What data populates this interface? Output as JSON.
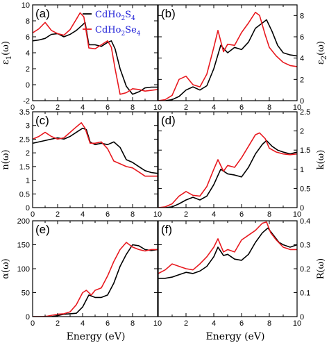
{
  "colors": {
    "s4": "#000000",
    "se4": "#e8191f",
    "legend_text": "#1a1ad6"
  },
  "legend": [
    {
      "prefix": "CdHo",
      "sub1": "2",
      "mid": "S",
      "sub2": "4",
      "series": "s4"
    },
    {
      "prefix": "CdHo",
      "sub1": "2",
      "mid": "Se",
      "sub2": "4",
      "series": "se4"
    }
  ],
  "xlabels": {
    "left": "Energy (eV)",
    "right": "Energy (eV)"
  },
  "chart_data": [
    {
      "panel": "(a)",
      "type": "line",
      "ylabel": "ε₁(ω)",
      "ylabel_main": "ε",
      "ylabel_sub": "1",
      "ylabel_tail": "(ω)",
      "ylabel_side": "left",
      "xlim": [
        0,
        10
      ],
      "ylim": [
        -2,
        10
      ],
      "xticks": [
        0,
        2,
        4,
        6,
        8,
        10
      ],
      "yticks": [
        -2,
        0,
        2,
        4,
        6,
        8,
        10
      ],
      "series": [
        {
          "key": "s4",
          "x": [
            0,
            0.5,
            1,
            1.5,
            2,
            2.5,
            3,
            3.5,
            4,
            4.2,
            4.5,
            5,
            5.5,
            6,
            6.3,
            6.6,
            7,
            7.5,
            8,
            8.5,
            9,
            9.5,
            10
          ],
          "y": [
            5.5,
            5.6,
            5.8,
            6.3,
            6.4,
            6.0,
            6.3,
            6.8,
            7.5,
            7.8,
            5.0,
            5.0,
            4.8,
            5.3,
            5.5,
            4.5,
            2.0,
            -0.2,
            -1.2,
            -0.9,
            -0.4,
            -0.3,
            -0.3
          ]
        },
        {
          "key": "se4",
          "x": [
            0,
            0.5,
            1,
            1.5,
            2,
            2.5,
            3,
            3.5,
            3.8,
            4.1,
            4.5,
            5,
            5.5,
            6,
            6.3,
            6.6,
            7,
            7.5,
            8,
            8.5,
            9,
            9.5,
            10
          ],
          "y": [
            6.5,
            7.0,
            7.8,
            6.8,
            6.4,
            6.2,
            6.9,
            8.2,
            9.0,
            8.5,
            4.6,
            4.5,
            5.0,
            5.5,
            4.7,
            2.0,
            -1.2,
            -1.0,
            -0.5,
            -0.6,
            -0.8,
            -0.7,
            -0.6
          ]
        }
      ]
    },
    {
      "panel": "(b)",
      "type": "line",
      "ylabel": "ε₂(ω)",
      "ylabel_main": "ε",
      "ylabel_sub": "2",
      "ylabel_tail": "(ω)",
      "ylabel_side": "right",
      "xlim": [
        0,
        10
      ],
      "ylim": [
        0,
        9
      ],
      "xticks": [
        0,
        2,
        4,
        6,
        8,
        10
      ],
      "yticks": [
        0,
        2,
        4,
        6,
        8
      ],
      "series": [
        {
          "key": "s4",
          "x": [
            0,
            0.5,
            1,
            1.5,
            2,
            2.5,
            3,
            3.5,
            4,
            4.5,
            5,
            5.5,
            6,
            6.5,
            7,
            7.5,
            7.8,
            8.2,
            8.6,
            9,
            9.5,
            10
          ],
          "y": [
            0,
            0,
            0.1,
            0.4,
            1.0,
            1.3,
            1.0,
            1.4,
            3.0,
            5.2,
            4.5,
            5.0,
            4.8,
            5.5,
            6.8,
            7.3,
            7.6,
            6.5,
            5.2,
            4.5,
            4.3,
            4.2
          ]
        },
        {
          "key": "se4",
          "x": [
            0,
            0.5,
            1,
            1.5,
            2,
            2.5,
            3,
            3.5,
            4,
            4.3,
            4.7,
            5,
            5.5,
            6,
            6.5,
            7,
            7.3,
            7.7,
            8,
            8.5,
            9,
            9.5,
            10
          ],
          "y": [
            0,
            0.1,
            0.5,
            2.0,
            2.3,
            1.5,
            1.3,
            2.5,
            5.0,
            6.6,
            4.6,
            5.3,
            5.2,
            6.4,
            7.3,
            8.3,
            8.0,
            6.2,
            5.0,
            4.2,
            3.6,
            3.3,
            3.2
          ]
        }
      ]
    },
    {
      "panel": "(c)",
      "type": "line",
      "ylabel": "n(ω)",
      "ylabel_main": "n(ω)",
      "ylabel_sub": "",
      "ylabel_tail": "",
      "ylabel_side": "left",
      "xlim": [
        0,
        10
      ],
      "ylim": [
        0,
        3.5
      ],
      "xticks": [
        0,
        2,
        4,
        6,
        8,
        10
      ],
      "yticks": [
        0,
        0.5,
        1,
        1.5,
        2,
        2.5,
        3,
        3.5
      ],
      "series": [
        {
          "key": "s4",
          "x": [
            0,
            0.5,
            1,
            1.5,
            2,
            2.5,
            3,
            3.5,
            4,
            4.3,
            4.6,
            5,
            5.5,
            6,
            6.5,
            7,
            7.5,
            8,
            8.5,
            9,
            9.5,
            10
          ],
          "y": [
            2.35,
            2.4,
            2.45,
            2.5,
            2.55,
            2.5,
            2.6,
            2.75,
            2.9,
            2.85,
            2.4,
            2.3,
            2.35,
            2.3,
            2.4,
            2.2,
            1.75,
            1.65,
            1.5,
            1.35,
            1.28,
            1.25
          ]
        },
        {
          "key": "se4",
          "x": [
            0,
            0.5,
            1,
            1.5,
            2,
            2.5,
            3,
            3.5,
            3.9,
            4.2,
            4.6,
            5,
            5.5,
            6,
            6.5,
            7,
            7.5,
            8,
            8.5,
            9,
            9.5,
            10
          ],
          "y": [
            2.5,
            2.6,
            2.75,
            2.6,
            2.5,
            2.55,
            2.75,
            2.95,
            3.1,
            2.9,
            2.35,
            2.35,
            2.4,
            2.15,
            1.7,
            1.6,
            1.5,
            1.45,
            1.3,
            1.15,
            1.15,
            1.15
          ]
        }
      ]
    },
    {
      "panel": "(d)",
      "type": "line",
      "ylabel": "k(ω)",
      "ylabel_main": "k(ω)",
      "ylabel_sub": "",
      "ylabel_tail": "",
      "ylabel_side": "right",
      "xlim": [
        0,
        10
      ],
      "ylim": [
        0,
        2.5
      ],
      "xticks": [
        0,
        2,
        4,
        6,
        8,
        10
      ],
      "yticks": [
        0,
        0.5,
        1,
        1.5,
        2,
        2.5
      ],
      "series": [
        {
          "key": "s4",
          "x": [
            0,
            0.5,
            1,
            1.5,
            2,
            2.5,
            3,
            3.5,
            4,
            4.5,
            5,
            5.5,
            6,
            6.5,
            7,
            7.5,
            7.8,
            8.2,
            8.6,
            9,
            9.5,
            10
          ],
          "y": [
            0,
            0,
            0.02,
            0.1,
            0.2,
            0.27,
            0.2,
            0.3,
            0.6,
            1.0,
            0.88,
            0.85,
            0.8,
            1.05,
            1.4,
            1.65,
            1.75,
            1.6,
            1.5,
            1.45,
            1.4,
            1.45
          ]
        },
        {
          "key": "se4",
          "x": [
            0,
            0.5,
            1,
            1.5,
            2,
            2.5,
            3,
            3.5,
            4,
            4.3,
            4.7,
            5,
            5.5,
            6,
            6.5,
            7,
            7.3,
            7.7,
            8,
            8.5,
            9,
            9.5,
            10
          ],
          "y": [
            0,
            0.02,
            0.1,
            0.3,
            0.42,
            0.32,
            0.3,
            0.55,
            1.0,
            1.25,
            0.95,
            1.1,
            1.05,
            1.3,
            1.6,
            1.9,
            1.95,
            1.8,
            1.55,
            1.45,
            1.4,
            1.38,
            1.4
          ]
        }
      ]
    },
    {
      "panel": "(e)",
      "type": "line",
      "ylabel": "α(ω)",
      "ylabel_main": "α(ω)",
      "ylabel_sub": "",
      "ylabel_tail": "",
      "ylabel_side": "left",
      "xlim": [
        0,
        10
      ],
      "ylim": [
        0,
        200
      ],
      "xticks": [
        0,
        2,
        4,
        6,
        8,
        10
      ],
      "yticks": [
        0,
        50,
        100,
        150,
        200
      ],
      "series": [
        {
          "key": "s4",
          "x": [
            0,
            1,
            1.5,
            2,
            2.5,
            3,
            3.5,
            4,
            4.5,
            5,
            5.5,
            6,
            6.5,
            7,
            7.5,
            8,
            8.5,
            9,
            9.5,
            10
          ],
          "y": [
            0,
            0,
            0,
            2,
            5,
            6,
            7,
            20,
            45,
            40,
            40,
            45,
            70,
            105,
            130,
            150,
            148,
            140,
            138,
            140
          ]
        },
        {
          "key": "se4",
          "x": [
            0,
            0.8,
            1.2,
            1.6,
            2,
            2.5,
            3,
            3.5,
            4,
            4.3,
            4.7,
            5,
            5.5,
            6,
            6.5,
            7,
            7.5,
            8,
            8.5,
            9,
            9.5,
            10
          ],
          "y": [
            0,
            0,
            1,
            3,
            5,
            6,
            10,
            25,
            50,
            55,
            45,
            55,
            60,
            85,
            115,
            140,
            155,
            145,
            140,
            137,
            140,
            140
          ]
        }
      ]
    },
    {
      "panel": "(f)",
      "type": "line",
      "ylabel": "R(ω)",
      "ylabel_main": "R(ω)",
      "ylabel_sub": "",
      "ylabel_tail": "",
      "ylabel_side": "right",
      "xlim": [
        0,
        10
      ],
      "ylim": [
        0,
        0.4
      ],
      "xticks": [
        0,
        2,
        4,
        6,
        8,
        10
      ],
      "yticks": [
        0,
        0.1,
        0.2,
        0.3,
        0.4
      ],
      "series": [
        {
          "key": "s4",
          "x": [
            0,
            0.5,
            1,
            1.5,
            2,
            2.5,
            3,
            3.5,
            4,
            4.3,
            4.7,
            5,
            5.5,
            6,
            6.5,
            7,
            7.5,
            7.9,
            8.3,
            8.7,
            9,
            9.5,
            10
          ],
          "y": [
            0.16,
            0.16,
            0.165,
            0.175,
            0.185,
            0.18,
            0.19,
            0.21,
            0.25,
            0.29,
            0.255,
            0.26,
            0.24,
            0.235,
            0.26,
            0.31,
            0.35,
            0.37,
            0.34,
            0.31,
            0.3,
            0.29,
            0.3
          ]
        },
        {
          "key": "se4",
          "x": [
            0,
            0.5,
            1,
            1.5,
            2,
            2.5,
            3,
            3.5,
            4,
            4.3,
            4.7,
            5,
            5.5,
            6,
            6.5,
            7,
            7.5,
            7.8,
            8.1,
            8.5,
            9,
            9.5,
            10
          ],
          "y": [
            0.18,
            0.195,
            0.22,
            0.21,
            0.2,
            0.195,
            0.22,
            0.25,
            0.29,
            0.325,
            0.27,
            0.28,
            0.27,
            0.32,
            0.34,
            0.36,
            0.39,
            0.395,
            0.35,
            0.32,
            0.29,
            0.28,
            0.28
          ]
        }
      ]
    }
  ]
}
